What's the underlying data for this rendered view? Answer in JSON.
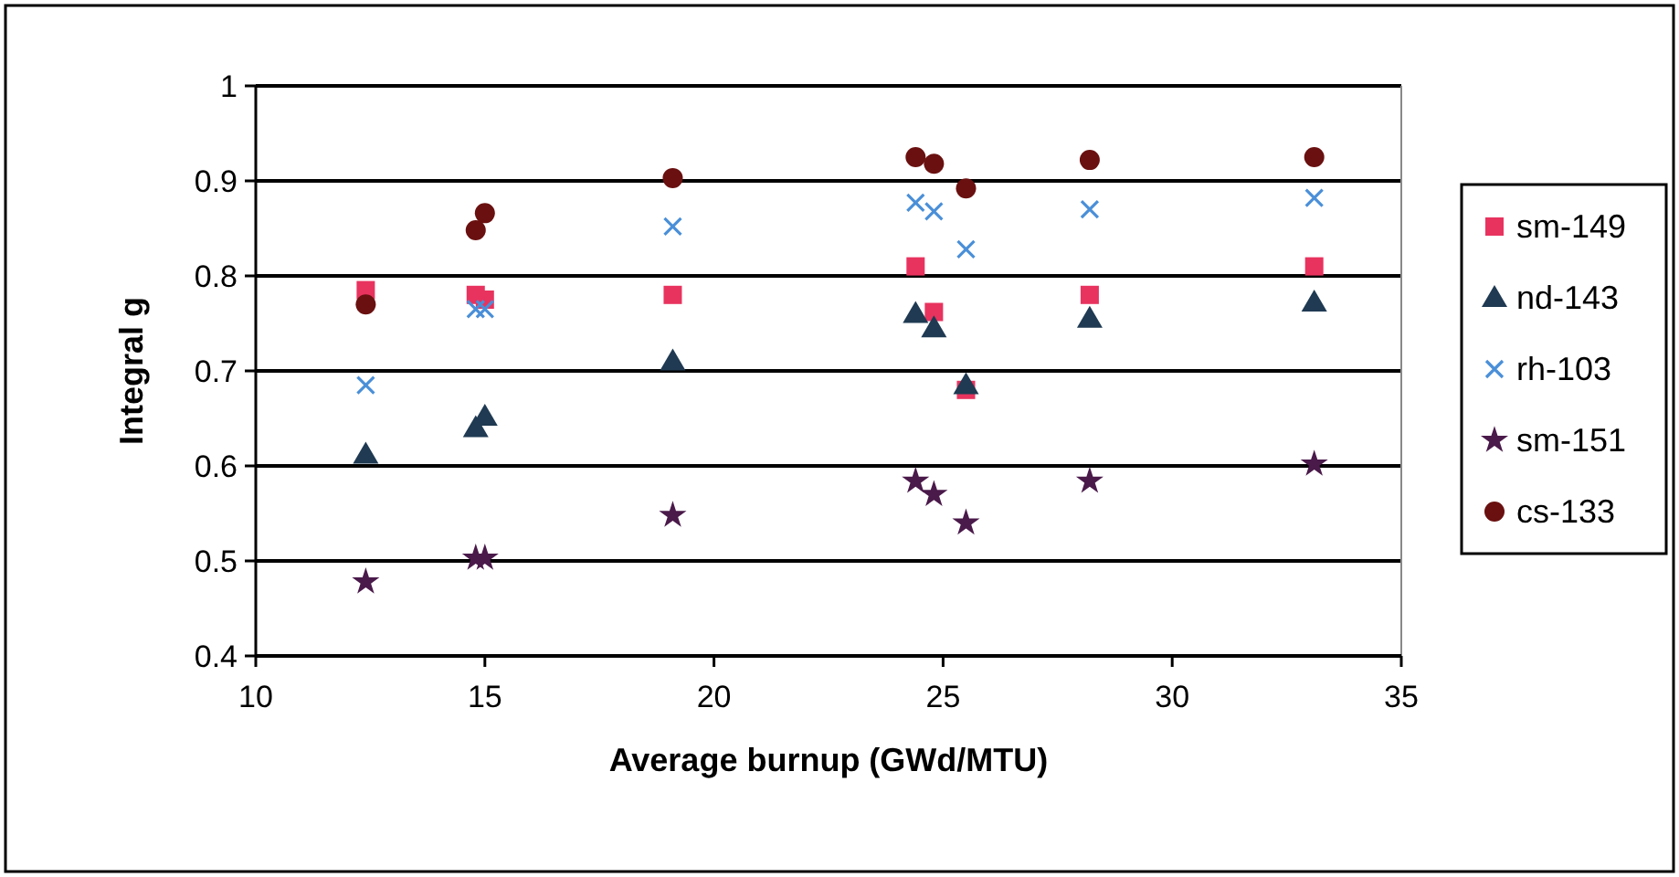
{
  "chart_data": {
    "type": "scatter",
    "xlabel": "Average burnup (GWd/MTU)",
    "ylabel": "Integral g",
    "x": [
      12.4,
      14.8,
      15.0,
      19.1,
      24.4,
      24.8,
      25.5,
      28.2,
      33.1
    ],
    "series": [
      {
        "name": "sm-149",
        "color": "#e8335f",
        "marker": "square",
        "values": [
          0.785,
          0.78,
          0.775,
          0.78,
          0.81,
          0.762,
          0.68,
          0.78,
          0.81
        ]
      },
      {
        "name": "nd-143",
        "color": "#1f3a52",
        "marker": "triangle",
        "values": [
          0.612,
          0.64,
          0.652,
          0.71,
          0.76,
          0.745,
          0.685,
          0.755,
          0.772
        ]
      },
      {
        "name": "rh-103",
        "color": "#4a8fd8",
        "marker": "cross",
        "values": [
          0.685,
          0.765,
          0.765,
          0.852,
          0.877,
          0.868,
          0.828,
          0.87,
          0.882
        ]
      },
      {
        "name": "sm-151",
        "color": "#4a1a4a",
        "marker": "star",
        "values": [
          0.478,
          0.503,
          0.503,
          0.548,
          0.584,
          0.57,
          0.54,
          0.584,
          0.602
        ]
      },
      {
        "name": "cs-133",
        "color": "#6a1010",
        "marker": "circle",
        "values": [
          0.77,
          0.848,
          0.866,
          0.903,
          0.925,
          0.918,
          0.892,
          0.922,
          0.925
        ]
      }
    ],
    "xlim": [
      10,
      35
    ],
    "xticks": [
      10,
      15,
      20,
      25,
      30,
      35
    ],
    "ylim": [
      0.4,
      1
    ],
    "yticks": [
      0.4,
      0.5,
      0.6,
      0.7,
      0.8,
      0.9,
      1
    ],
    "grid": "y",
    "legend": "right"
  }
}
